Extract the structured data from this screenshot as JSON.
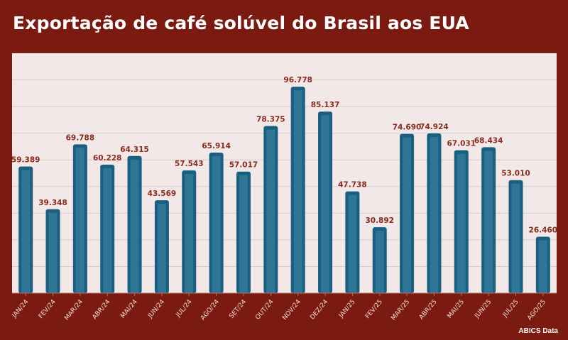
{
  "chart_data": {
    "type": "bar",
    "title": "Exportação de café solúvel do Brasil aos EUA",
    "source": "ABICS Data",
    "xlabel": "",
    "ylabel": "",
    "categories": [
      "JAN/24",
      "FEV/24",
      "MAR/24",
      "ABR/24",
      "MAI/24",
      "JUN/24",
      "JUL/24",
      "AGO/24",
      "SET/24",
      "OUT/24",
      "NOV/24",
      "DEZ/24",
      "JAN/25",
      "FEV/25",
      "MAR/25",
      "ABR/25",
      "MAI/25",
      "JUN/25",
      "JUL/25",
      "AGO/25"
    ],
    "values": [
      59.389,
      39.348,
      69.788,
      60.228,
      64.315,
      43.569,
      57.543,
      65.914,
      57.017,
      78.375,
      96.778,
      85.137,
      47.738,
      30.892,
      74.69,
      74.924,
      67.031,
      68.434,
      53.01,
      26.46
    ],
    "labels": [
      "59.389",
      "39.348",
      "69.788",
      "60.228",
      "64.315",
      "43.569",
      "57.543",
      "65.914",
      "57.017",
      "78.375",
      "96.778",
      "85.137",
      "47.738",
      "30.892",
      "74.690",
      "74.924",
      "67.031",
      "68.434",
      "53.010",
      "26.460"
    ],
    "ylim": [
      0,
      112.5
    ],
    "grid_step": 12.5,
    "grid": true,
    "legend": "none",
    "colors": {
      "bar": "#1b5f80",
      "bar_inner": "#2f7595",
      "label": "#8a2a1c",
      "background": "#7b1a10",
      "plot": "#f2e8e8"
    }
  }
}
